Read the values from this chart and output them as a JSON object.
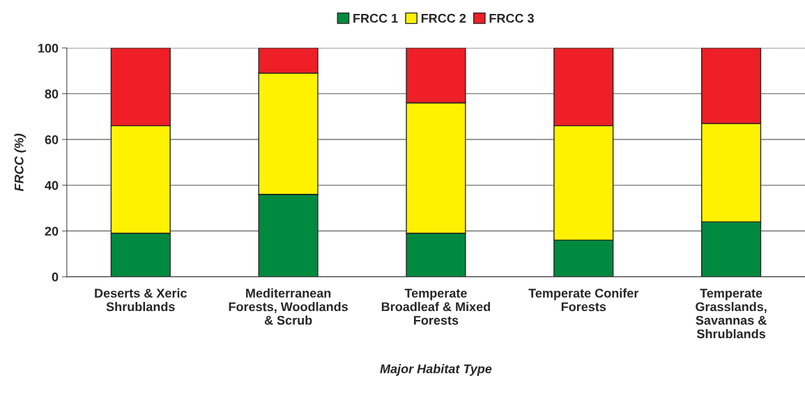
{
  "chart_data": {
    "type": "bar",
    "stacked": true,
    "categories": [
      "Deserts & Xeric\nShrublands",
      "Mediterranean\nForests, Woodlands\n& Scrub",
      "Temperate\nBroadleaf & Mixed\nForests",
      "Temperate Conifer\nForests",
      "Temperate\nGrasslands,\nSavannas &\nShrublands"
    ],
    "series": [
      {
        "name": "FRCC 1",
        "color": "#008a40",
        "values": [
          19,
          36,
          19,
          16,
          24
        ]
      },
      {
        "name": "FRCC 2",
        "color": "#fff200",
        "values": [
          47,
          53,
          57,
          50,
          43
        ]
      },
      {
        "name": "FRCC 3",
        "color": "#ee1f26",
        "values": [
          34,
          11,
          24,
          34,
          33
        ]
      }
    ],
    "xlabel": "Major Habitat Type",
    "ylabel": "FRCC (%)",
    "ylim": [
      0,
      100
    ],
    "yticks": [
      0,
      20,
      40,
      60,
      80,
      100
    ],
    "grid": "y",
    "legend": "top"
  }
}
